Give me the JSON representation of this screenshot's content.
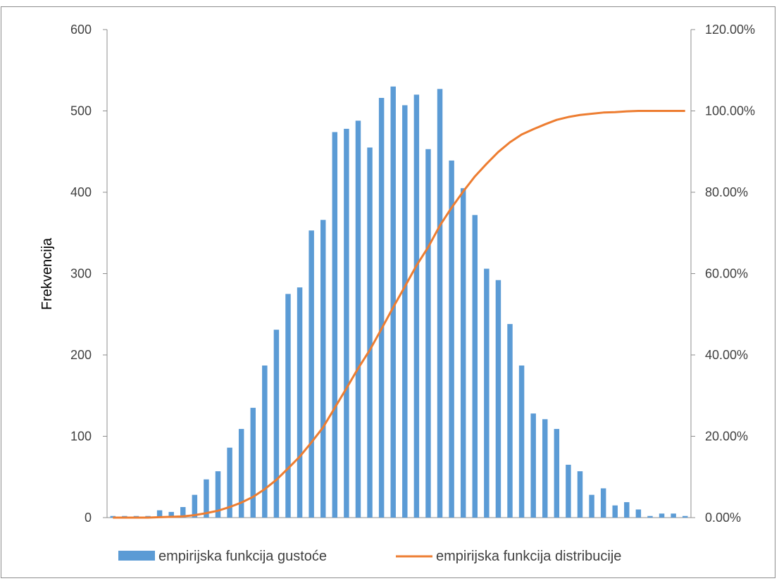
{
  "chart_data": {
    "type": "bar",
    "title": "",
    "ylabel": "Frekvencija",
    "y_ticks": [
      "0",
      "100",
      "200",
      "300",
      "400",
      "500",
      "600"
    ],
    "y2_ticks": [
      "0.00%",
      "20.00%",
      "40.00%",
      "60.00%",
      "80.00%",
      "100.00%",
      "120.00%"
    ],
    "ylim": [
      0,
      600
    ],
    "y2lim": [
      0,
      1.2
    ],
    "grid": false,
    "legend_position": "bottom",
    "colors": {
      "bars": "#5b9bd5",
      "line": "#ed7d31",
      "axis": "#8c8c8c"
    },
    "series": [
      {
        "name": "empirijska funkcija gustoće",
        "type": "bar",
        "axis": "left",
        "values": [
          2,
          2,
          2,
          2,
          9,
          7,
          13,
          28,
          47,
          57,
          86,
          109,
          135,
          187,
          231,
          275,
          283,
          353,
          366,
          474,
          478,
          488,
          455,
          516,
          530,
          507,
          520,
          453,
          527,
          439,
          405,
          372,
          306,
          292,
          238,
          187,
          128,
          121,
          109,
          65,
          57,
          28,
          36,
          15,
          19,
          10,
          2,
          5,
          5,
          2
        ]
      },
      {
        "name": "empirijska funkcija distribucije",
        "type": "line",
        "axis": "right",
        "values": [
          0.0,
          0.0,
          0.0,
          0.0,
          0.001,
          0.002,
          0.003,
          0.006,
          0.011,
          0.017,
          0.026,
          0.037,
          0.051,
          0.07,
          0.093,
          0.121,
          0.15,
          0.185,
          0.222,
          0.27,
          0.318,
          0.367,
          0.412,
          0.464,
          0.517,
          0.568,
          0.62,
          0.665,
          0.718,
          0.762,
          0.802,
          0.839,
          0.87,
          0.899,
          0.923,
          0.942,
          0.955,
          0.967,
          0.978,
          0.985,
          0.99,
          0.993,
          0.996,
          0.997,
          0.999,
          1.0,
          1.0,
          1.0,
          1.0,
          1.0
        ]
      }
    ]
  }
}
